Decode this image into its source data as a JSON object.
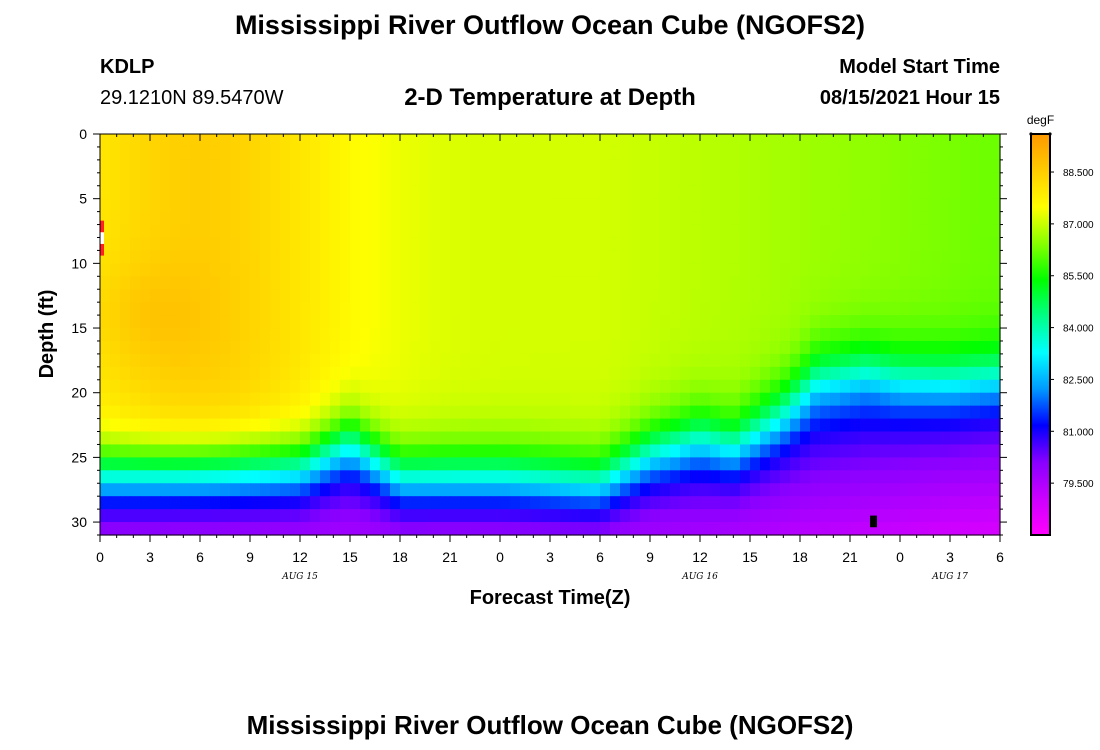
{
  "title": "Mississippi River Outflow Ocean Cube (NGOFS2)",
  "station": {
    "id": "KDLP",
    "coords": "29.1210N  89.5470W"
  },
  "plot_title": "2-D Temperature at Depth",
  "model": {
    "label": "Model Start Time",
    "time": "08/15/2021 Hour 15"
  },
  "footer_title": "Mississippi River Outflow Ocean Cube (NGOFS2)",
  "chart_data": {
    "type": "heatmap",
    "xlabel": "Forecast Time(Z)",
    "ylabel": "Depth (ft)",
    "x_ticks": [
      "0",
      "3",
      "6",
      "9",
      "12",
      "15",
      "18",
      "21",
      "0",
      "3",
      "6",
      "9",
      "12",
      "15",
      "18",
      "21",
      "0",
      "3",
      "6"
    ],
    "date_labels": [
      {
        "text": "AUG 15",
        "tick_index": 4
      },
      {
        "text": "AUG 16",
        "tick_index": 12
      },
      {
        "text": "AUG 17",
        "tick_index": 17
      }
    ],
    "y_ticks": [
      0,
      5,
      10,
      15,
      20,
      25,
      30
    ],
    "ylim": [
      0,
      31
    ],
    "colorbar": {
      "unit": "degF",
      "ticks": [
        "88.500",
        "87.000",
        "85.500",
        "84.000",
        "82.500",
        "81.000",
        "79.500"
      ],
      "tick_values": [
        88.5,
        87.0,
        85.5,
        84.0,
        82.5,
        81.0,
        79.5
      ],
      "range": [
        78.0,
        89.6
      ],
      "colors": [
        "#ff00ff",
        "#cc00ff",
        "#8800ff",
        "#0000ff",
        "#0099ff",
        "#00ffff",
        "#00ff88",
        "#00ff00",
        "#88ff00",
        "#ffff00",
        "#ffcc00",
        "#ff9900"
      ]
    },
    "anomalies": [
      {
        "note": "white/red cells at x=0 depth 7-9 ft"
      },
      {
        "note": "black cell near x=22.5h (day 2) depth 30 ft"
      }
    ]
  }
}
